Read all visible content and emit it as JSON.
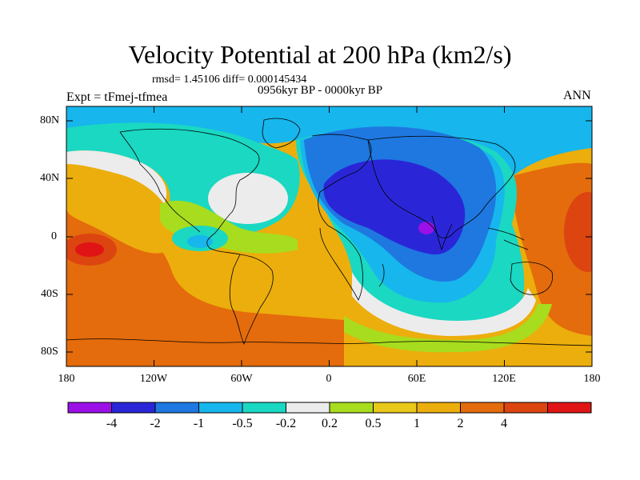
{
  "title": "Velocity Potential at 200 hPa (km2/s)",
  "stats": "rmsd= 1.45106 diff= 0.000145434",
  "period": "0956kyr BP - 0000kyr BP",
  "experiment": "Expt = tFmej-tfmea",
  "season": "ANN",
  "lat_labels": [
    "80N",
    "40N",
    "0",
    "40S",
    "80S"
  ],
  "lon_labels": [
    "180",
    "120W",
    "60W",
    "0",
    "60E",
    "120E",
    "180"
  ],
  "colorbar": {
    "colors": [
      "#9a10e6",
      "#2a26d8",
      "#1e78e0",
      "#17b6ec",
      "#1ad8c2",
      "#ececec",
      "#a8dc1e",
      "#e8c81a",
      "#ecae0c",
      "#e46c0c",
      "#dc4410",
      "#e01414"
    ],
    "labels": [
      "-4",
      "-2",
      "-1",
      "-0.5",
      "-0.2",
      "0.2",
      "0.5",
      "1",
      "2",
      "4"
    ]
  },
  "field_colors": {
    "deep_negative": "#9a10e6",
    "strong_negative": "#2a26d8",
    "negative": "#1e78e0",
    "weak_negative": "#17b6ec",
    "slight_negative": "#1ad8c2",
    "neutral": "#ececec",
    "slight_positive": "#a8dc1e",
    "weak_positive": "#e8c81a",
    "positive": "#ecae0c",
    "strong_positive": "#e46c0c",
    "very_strong_positive": "#dc4410",
    "max_positive": "#e01414"
  }
}
